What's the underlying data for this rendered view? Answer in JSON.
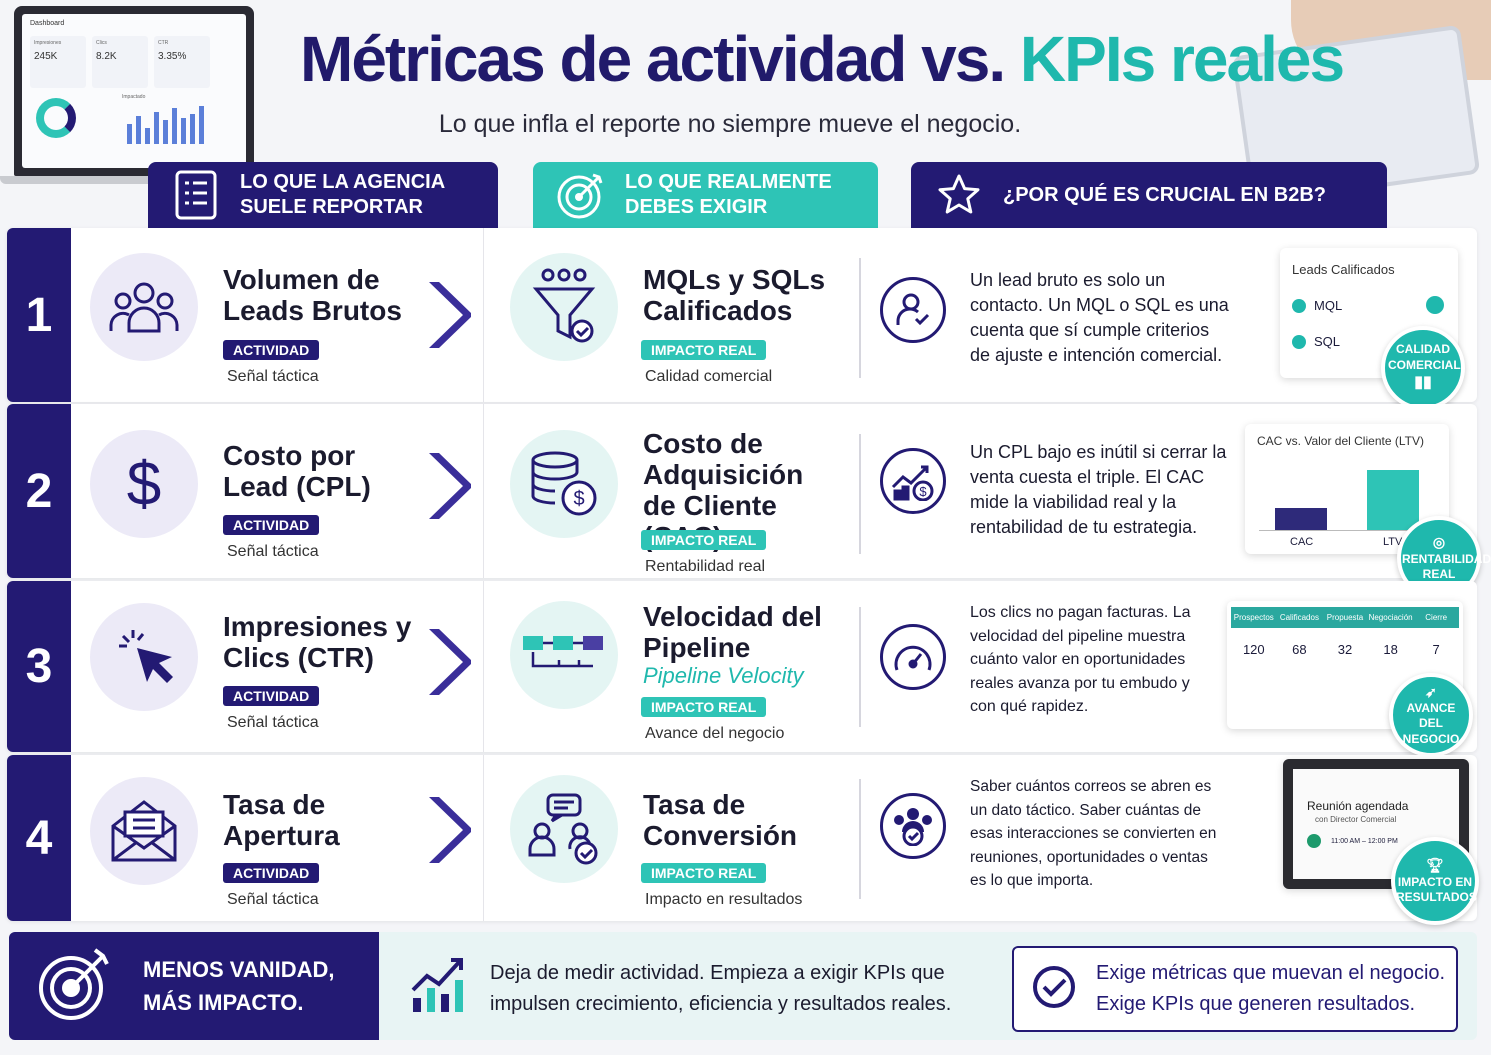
{
  "header": {
    "title_part1": "Métricas de actividad vs.",
    "title_part2": "KPIs reales",
    "subtitle": "Lo que infla el reporte no siempre mueve el negocio."
  },
  "decor": {
    "dashboard_label": "Dashboard",
    "tiles": [
      {
        "label": "Impresiones",
        "value": "245K"
      },
      {
        "label": "Clics",
        "value": "8.2K"
      },
      {
        "label": "CTR",
        "value": "3.35%"
      }
    ],
    "tile_label_4": "Impactado"
  },
  "columns": [
    {
      "label": "LO QUE LA AGENCIA SUELE REPORTAR",
      "icon": "report-icon"
    },
    {
      "label": "LO QUE REALMENTE DEBES EXIGIR",
      "icon": "target-icon"
    },
    {
      "label": "¿POR QUÉ ES CRUCIAL EN B2B?",
      "icon": "star-icon"
    }
  ],
  "rows": [
    {
      "number": "1",
      "activity": {
        "title": "Volumen de Leads Brutos",
        "badge": "ACTIVIDAD",
        "sub": "Señal táctica",
        "icon": "people-group-icon"
      },
      "kpi": {
        "title": "MQLs y SQLs Calificados",
        "badge": "IMPACTO REAL",
        "sub": "Calidad comercial",
        "icon": "funnel-check-icon"
      },
      "why": {
        "text": "Un lead bruto es solo un contacto. Un MQL o SQL es una cuenta que sí cumple criterios de ajuste e intención comercial.",
        "icon": "user-check-icon"
      },
      "illus": {
        "title": "Leads Calificados",
        "items": [
          "MQL",
          "SQL"
        ]
      },
      "seal": "CALIDAD COMERCIAL"
    },
    {
      "number": "2",
      "activity": {
        "title": "Costo por Lead (CPL)",
        "badge": "ACTIVIDAD",
        "sub": "Señal táctica",
        "icon": "dollar-icon"
      },
      "kpi": {
        "title": "Costo de Adquisición de Cliente (CAC)",
        "badge": "IMPACTO REAL",
        "sub": "Rentabilidad real",
        "icon": "coins-dollar-icon"
      },
      "why": {
        "text": "Un CPL bajo es inútil si cerrar la venta cuesta el triple. El CAC mide la viabilidad real y la rentabilidad de tu estrategia.",
        "icon": "growth-dollar-icon"
      },
      "illus": {
        "title": "CAC vs. Valor del Cliente (LTV)",
        "bars": [
          "CAC",
          "LTV"
        ]
      },
      "seal": "RENTABILIDAD REAL"
    },
    {
      "number": "3",
      "activity": {
        "title": "Impresiones y Clics (CTR)",
        "badge": "ACTIVIDAD",
        "sub": "Señal táctica",
        "icon": "cursor-click-icon"
      },
      "kpi": {
        "title": "Velocidad del Pipeline",
        "subtitle_italic": "Pipeline Velocity",
        "badge": "IMPACTO REAL",
        "sub": "Avance del negocio",
        "icon": "pipeline-icon"
      },
      "why": {
        "text": "Los clics no pagan facturas. La velocidad del pipeline muestra cuánto valor en oportunidades reales avanza por tu embudo y con qué rapidez.",
        "icon": "speedometer-icon"
      },
      "illus": {
        "stages": [
          {
            "name": "Prospectos",
            "value": "120"
          },
          {
            "name": "Calificados",
            "value": "68"
          },
          {
            "name": "Propuesta",
            "value": "32"
          },
          {
            "name": "Negociación",
            "value": "18"
          },
          {
            "name": "Cierre",
            "value": "7"
          }
        ]
      },
      "seal": "AVANCE DEL NEGOCIO"
    },
    {
      "number": "4",
      "activity": {
        "title": "Tasa de Apertura",
        "badge": "ACTIVIDAD",
        "sub": "Señal táctica",
        "icon": "envelope-open-icon"
      },
      "kpi": {
        "title": "Tasa de Conversión",
        "badge": "IMPACTO REAL",
        "sub": "Impacto en resultados",
        "icon": "conversation-check-icon"
      },
      "why": {
        "text": "Saber cuántos correos se abren es un dato táctico. Saber cuántas de esas interacciones se convierten en reuniones, oportunidades o ventas es lo que importa.",
        "icon": "team-check-icon"
      },
      "illus": {
        "title": "Reunión agendada",
        "sub": "con Director Comercial",
        "time": "11:00 AM – 12:00 PM"
      },
      "seal": "IMPACTO EN RESULTADOS"
    }
  ],
  "footer": {
    "left": "MENOS VANIDAD, MÁS IMPACTO.",
    "middle": "Deja de medir actividad. Empieza a exigir KPIs que impulsen crecimiento, eficiencia y resultados reales.",
    "right_line1": "Exige métricas que muevan el negocio.",
    "right_line2": "Exige KPIs que generen resultados."
  },
  "colors": {
    "navy": "#231a73",
    "teal": "#2ec4b6",
    "lavender": "#eceaf7"
  }
}
